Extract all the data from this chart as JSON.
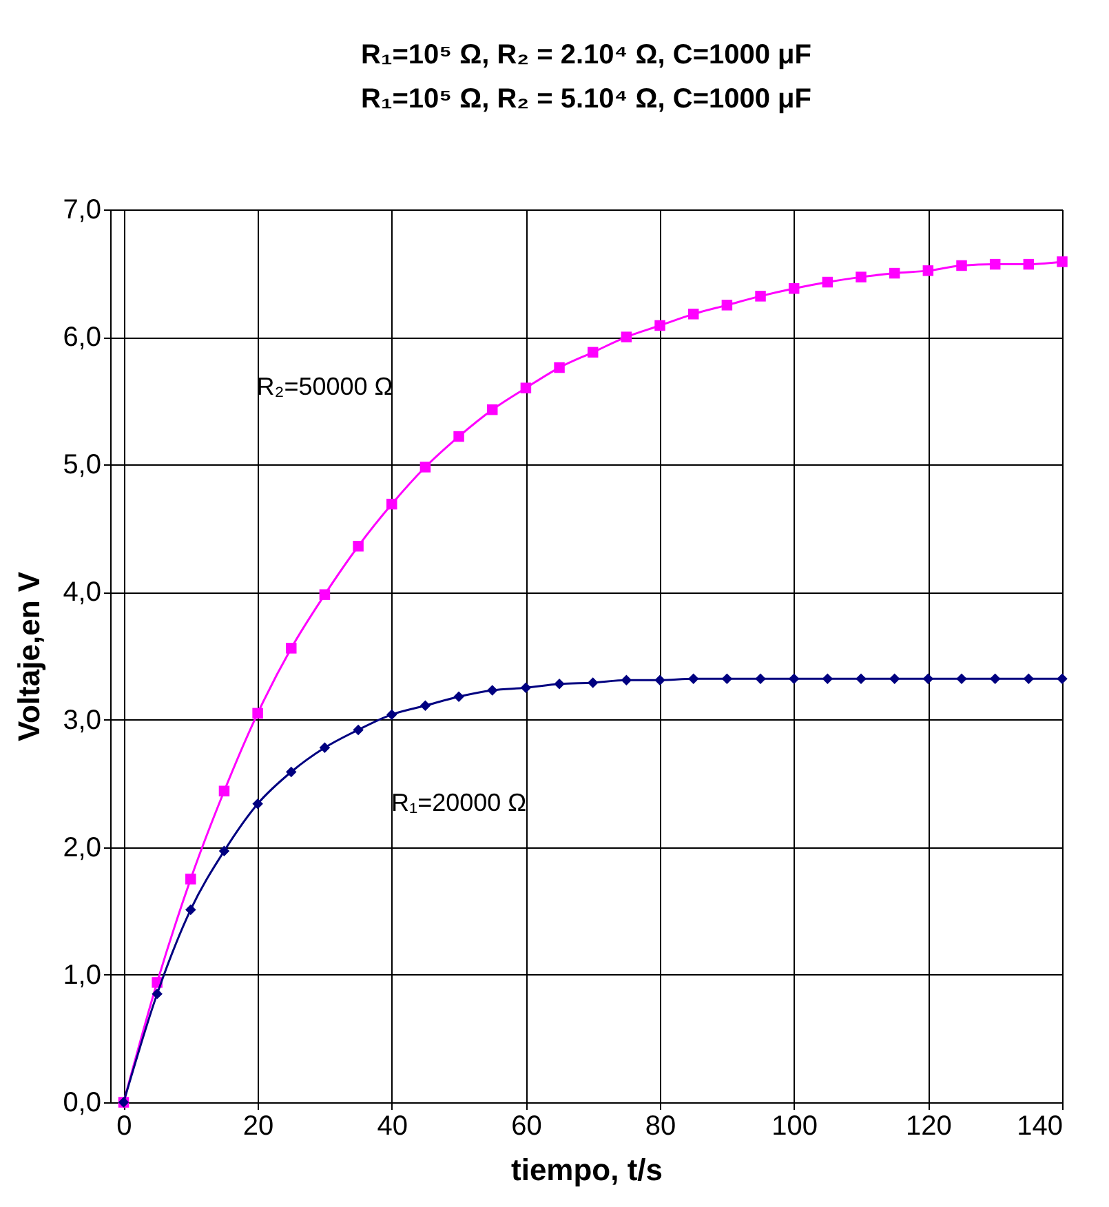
{
  "chart_data": {
    "type": "line",
    "title": "R₁=10⁵ Ω, R₂ = 2.10⁴ Ω, C=1000 μF",
    "subtitle": "R₁=10⁵ Ω, R₂ = 5.10⁴ Ω, C=1000 μF",
    "xlabel": "tiempo, t/s",
    "ylabel": "Voltaje,en V",
    "x": [
      0,
      5,
      10,
      15,
      20,
      25,
      30,
      35,
      40,
      45,
      50,
      55,
      60,
      65,
      70,
      75,
      80,
      85,
      90,
      95,
      100,
      105,
      110,
      115,
      120,
      125,
      130,
      135,
      140
    ],
    "series": [
      {
        "color": "#ff00ff",
        "marker": "square",
        "values": [
          0,
          0.94,
          1.75,
          2.44,
          3.05,
          3.56,
          3.98,
          4.36,
          4.69,
          4.98,
          5.22,
          5.43,
          5.6,
          5.76,
          5.88,
          6.0,
          6.09,
          6.18,
          6.25,
          6.32,
          6.38,
          6.43,
          6.47,
          6.5,
          6.52,
          6.56,
          6.57,
          6.57,
          6.59
        ]
      },
      {
        "color": "#000080",
        "marker": "diamond",
        "values": [
          0,
          0.85,
          1.51,
          1.97,
          2.34,
          2.59,
          2.78,
          2.92,
          3.04,
          3.11,
          3.18,
          3.23,
          3.25,
          3.28,
          3.29,
          3.31,
          3.31,
          3.32,
          3.32,
          3.32,
          3.32,
          3.32,
          3.32,
          3.32,
          3.32,
          3.32,
          3.32,
          3.32,
          3.32
        ]
      }
    ],
    "annotations": [
      "R₂=50000 Ω",
      "R₁=20000 Ω"
    ],
    "xlim": [
      -2,
      140
    ],
    "xticks": [
      0,
      20,
      40,
      60,
      80,
      100,
      120,
      140
    ],
    "ylim": [
      0,
      7
    ],
    "yticks": [
      {
        "value": 0,
        "label": "0,0"
      },
      {
        "value": 1,
        "label": "1,0"
      },
      {
        "value": 2,
        "label": "2,0"
      },
      {
        "value": 3,
        "label": "3,0"
      },
      {
        "value": 4,
        "label": "4,0"
      },
      {
        "value": 5,
        "label": "5,0"
      },
      {
        "value": 6,
        "label": "6,0"
      },
      {
        "value": 7,
        "label": "7,0"
      }
    ],
    "grid": true
  }
}
